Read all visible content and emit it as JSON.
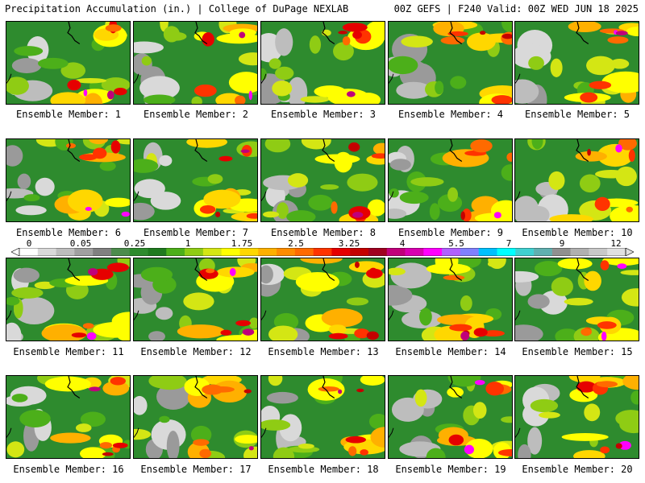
{
  "header": {
    "left": "Precipitation Accumulation (in.) | College of DuPage NEXLAB",
    "right": "00Z GEFS | F240 Valid: 00Z WED JUN 18 2025"
  },
  "caption_prefix": "Ensemble Member: ",
  "members": [
    {
      "label": "Ensemble Member: 1"
    },
    {
      "label": "Ensemble Member: 2"
    },
    {
      "label": "Ensemble Member: 3"
    },
    {
      "label": "Ensemble Member: 4"
    },
    {
      "label": "Ensemble Member: 5"
    },
    {
      "label": "Ensemble Member: 6"
    },
    {
      "label": "Ensemble Member: 7"
    },
    {
      "label": "Ensemble Member: 8"
    },
    {
      "label": "Ensemble Member: 9"
    },
    {
      "label": "Ensemble Member: 10"
    },
    {
      "label": "Ensemble Member: 11"
    },
    {
      "label": "Ensemble Member: 12"
    },
    {
      "label": "Ensemble Member: 13"
    },
    {
      "label": "Ensemble Member: 14"
    },
    {
      "label": "Ensemble Member: 15"
    },
    {
      "label": "Ensemble Member: 16"
    },
    {
      "label": "Ensemble Member: 17"
    },
    {
      "label": "Ensemble Member: 18"
    },
    {
      "label": "Ensemble Member: 19"
    },
    {
      "label": "Ensemble Member: 20"
    }
  ],
  "legend": {
    "labels": [
      "0",
      "0.05",
      "0.25",
      "1",
      "1.75",
      "2.5",
      "3.25",
      "4",
      "5.5",
      "7",
      "9",
      "12"
    ],
    "colors": [
      "#ffffff",
      "#d9d9d9",
      "#bdbdbd",
      "#a0a0a0",
      "#808080",
      "#4c8c4c",
      "#2e8b2e",
      "#1f7a1f",
      "#4caf1a",
      "#8fcc14",
      "#d4e614",
      "#ffff00",
      "#ffd700",
      "#ffb000",
      "#ff8c00",
      "#ff6a00",
      "#ff3300",
      "#e60000",
      "#c40000",
      "#a00020",
      "#c0007a",
      "#d800b0",
      "#ff00ff",
      "#b060ff",
      "#8080ff",
      "#00c0ff",
      "#00ffff",
      "#40d0d0",
      "#60b0b0",
      "#909090",
      "#b0b0b0",
      "#c8c8c8",
      "#e0e0e0"
    ]
  }
}
